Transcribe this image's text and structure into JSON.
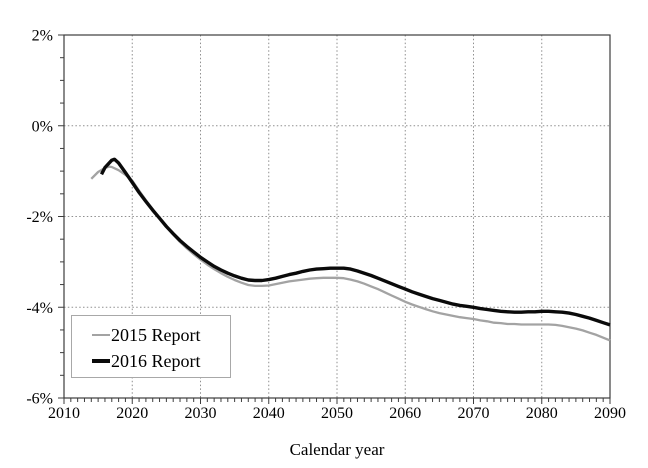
{
  "figure": {
    "background": "#ffffff",
    "title": ""
  },
  "chart_data": {
    "type": "line",
    "title": "",
    "xlabel": "Calendar year",
    "ylabel": "",
    "xlim": [
      2010,
      2090
    ],
    "ylim": [
      -6,
      2
    ],
    "x_major_ticks": [
      2010,
      2020,
      2030,
      2040,
      2050,
      2060,
      2070,
      2080,
      2090
    ],
    "x_minor_step": 1,
    "y_major_ticks": [
      {
        "value": 2,
        "label": "2%"
      },
      {
        "value": 0,
        "label": "0%"
      },
      {
        "value": -2,
        "label": "-2%"
      },
      {
        "value": -4,
        "label": "-4%"
      },
      {
        "value": -6,
        "label": "-6%"
      }
    ],
    "y_minor_step": 0.5,
    "grid": {
      "show_major": true,
      "style": "dotted",
      "color": "#8f8f8f"
    },
    "axis_color": "#3d3d3d",
    "legend_position": "lower-left",
    "series": [
      {
        "name": "2015 Report",
        "color": "#a3a3a3",
        "stroke_width": 2.3,
        "legend_sample_thickness": 2,
        "points": [
          [
            2014,
            -1.17
          ],
          [
            2015,
            -1.02
          ],
          [
            2016,
            -0.93
          ],
          [
            2016.6,
            -0.9
          ],
          [
            2017,
            -0.91
          ],
          [
            2018,
            -0.98
          ],
          [
            2019,
            -1.08
          ],
          [
            2020,
            -1.21
          ],
          [
            2021,
            -1.43
          ],
          [
            2022,
            -1.64
          ],
          [
            2023,
            -1.84
          ],
          [
            2024,
            -2.03
          ],
          [
            2025,
            -2.22
          ],
          [
            2026,
            -2.4
          ],
          [
            2027,
            -2.56
          ],
          [
            2028,
            -2.7
          ],
          [
            2029,
            -2.83
          ],
          [
            2030,
            -2.95
          ],
          [
            2031,
            -3.06
          ],
          [
            2032,
            -3.16
          ],
          [
            2033,
            -3.25
          ],
          [
            2034,
            -3.33
          ],
          [
            2035,
            -3.4
          ],
          [
            2036,
            -3.46
          ],
          [
            2037,
            -3.51
          ],
          [
            2038,
            -3.53
          ],
          [
            2039,
            -3.53
          ],
          [
            2040,
            -3.52
          ],
          [
            2041,
            -3.49
          ],
          [
            2042,
            -3.46
          ],
          [
            2043,
            -3.43
          ],
          [
            2044,
            -3.41
          ],
          [
            2045,
            -3.39
          ],
          [
            2046,
            -3.37
          ],
          [
            2047,
            -3.36
          ],
          [
            2048,
            -3.35
          ],
          [
            2049,
            -3.35
          ],
          [
            2050,
            -3.35
          ],
          [
            2051,
            -3.36
          ],
          [
            2052,
            -3.39
          ],
          [
            2053,
            -3.43
          ],
          [
            2054,
            -3.48
          ],
          [
            2055,
            -3.54
          ],
          [
            2056,
            -3.6
          ],
          [
            2057,
            -3.67
          ],
          [
            2058,
            -3.74
          ],
          [
            2059,
            -3.81
          ],
          [
            2060,
            -3.88
          ],
          [
            2061,
            -3.94
          ],
          [
            2062,
            -3.99
          ],
          [
            2063,
            -4.04
          ],
          [
            2064,
            -4.09
          ],
          [
            2065,
            -4.13
          ],
          [
            2066,
            -4.16
          ],
          [
            2067,
            -4.19
          ],
          [
            2068,
            -4.22
          ],
          [
            2069,
            -4.24
          ],
          [
            2070,
            -4.26
          ],
          [
            2071,
            -4.29
          ],
          [
            2072,
            -4.31
          ],
          [
            2073,
            -4.34
          ],
          [
            2074,
            -4.35
          ],
          [
            2075,
            -4.37
          ],
          [
            2076,
            -4.37
          ],
          [
            2077,
            -4.38
          ],
          [
            2078,
            -4.38
          ],
          [
            2079,
            -4.38
          ],
          [
            2080,
            -4.38
          ],
          [
            2081,
            -4.38
          ],
          [
            2082,
            -4.39
          ],
          [
            2083,
            -4.41
          ],
          [
            2084,
            -4.44
          ],
          [
            2085,
            -4.47
          ],
          [
            2086,
            -4.51
          ],
          [
            2087,
            -4.56
          ],
          [
            2088,
            -4.61
          ],
          [
            2089,
            -4.67
          ],
          [
            2090,
            -4.73
          ]
        ]
      },
      {
        "name": "2016 Report",
        "color": "#0a0a0a",
        "stroke_width": 3.4,
        "legend_sample_thickness": 3.5,
        "points": [
          [
            2015.5,
            -1.07
          ],
          [
            2016,
            -0.92
          ],
          [
            2017,
            -0.76
          ],
          [
            2017.4,
            -0.74
          ],
          [
            2018,
            -0.82
          ],
          [
            2019,
            -1.03
          ],
          [
            2020,
            -1.25
          ],
          [
            2021,
            -1.47
          ],
          [
            2022,
            -1.67
          ],
          [
            2023,
            -1.86
          ],
          [
            2024,
            -2.04
          ],
          [
            2025,
            -2.22
          ],
          [
            2026,
            -2.38
          ],
          [
            2027,
            -2.53
          ],
          [
            2028,
            -2.66
          ],
          [
            2029,
            -2.78
          ],
          [
            2030,
            -2.9
          ],
          [
            2031,
            -3.0
          ],
          [
            2032,
            -3.1
          ],
          [
            2033,
            -3.18
          ],
          [
            2034,
            -3.25
          ],
          [
            2035,
            -3.31
          ],
          [
            2036,
            -3.36
          ],
          [
            2037,
            -3.4
          ],
          [
            2038,
            -3.41
          ],
          [
            2039,
            -3.41
          ],
          [
            2040,
            -3.39
          ],
          [
            2041,
            -3.36
          ],
          [
            2042,
            -3.32
          ],
          [
            2043,
            -3.28
          ],
          [
            2044,
            -3.25
          ],
          [
            2045,
            -3.21
          ],
          [
            2046,
            -3.18
          ],
          [
            2047,
            -3.16
          ],
          [
            2048,
            -3.15
          ],
          [
            2049,
            -3.14
          ],
          [
            2050,
            -3.14
          ],
          [
            2051,
            -3.14
          ],
          [
            2052,
            -3.16
          ],
          [
            2053,
            -3.2
          ],
          [
            2054,
            -3.25
          ],
          [
            2055,
            -3.3
          ],
          [
            2056,
            -3.36
          ],
          [
            2057,
            -3.42
          ],
          [
            2058,
            -3.48
          ],
          [
            2059,
            -3.54
          ],
          [
            2060,
            -3.6
          ],
          [
            2061,
            -3.66
          ],
          [
            2062,
            -3.71
          ],
          [
            2063,
            -3.76
          ],
          [
            2064,
            -3.81
          ],
          [
            2065,
            -3.85
          ],
          [
            2066,
            -3.89
          ],
          [
            2067,
            -3.93
          ],
          [
            2068,
            -3.96
          ],
          [
            2069,
            -3.98
          ],
          [
            2070,
            -4.0
          ],
          [
            2071,
            -4.03
          ],
          [
            2072,
            -4.05
          ],
          [
            2073,
            -4.07
          ],
          [
            2074,
            -4.09
          ],
          [
            2075,
            -4.1
          ],
          [
            2076,
            -4.11
          ],
          [
            2077,
            -4.11
          ],
          [
            2078,
            -4.1
          ],
          [
            2079,
            -4.1
          ],
          [
            2080,
            -4.09
          ],
          [
            2081,
            -4.09
          ],
          [
            2082,
            -4.1
          ],
          [
            2083,
            -4.11
          ],
          [
            2084,
            -4.13
          ],
          [
            2085,
            -4.16
          ],
          [
            2086,
            -4.2
          ],
          [
            2087,
            -4.24
          ],
          [
            2088,
            -4.29
          ],
          [
            2089,
            -4.34
          ],
          [
            2090,
            -4.39
          ]
        ]
      }
    ]
  }
}
